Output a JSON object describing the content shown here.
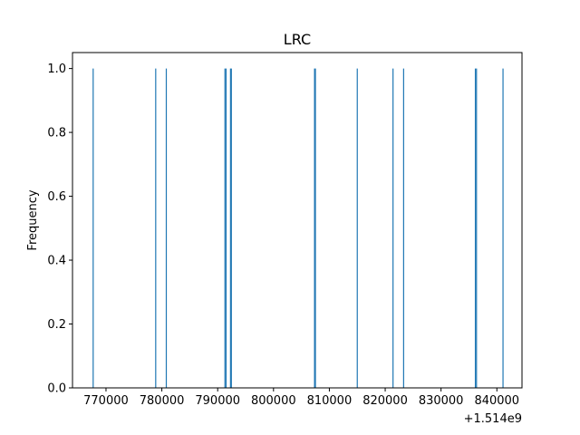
{
  "chart_data": {
    "type": "bar",
    "title": "LRC",
    "xlabel": "",
    "ylabel": "Frequency",
    "x_offset_label": "+1.514e9",
    "xlim": [
      764000,
      844500
    ],
    "ylim": [
      0,
      1.05
    ],
    "xticks": [
      770000,
      780000,
      790000,
      800000,
      810000,
      820000,
      830000,
      840000
    ],
    "xtick_labels": [
      "770000",
      "780000",
      "790000",
      "800000",
      "810000",
      "820000",
      "830000",
      "840000"
    ],
    "yticks": [
      0.0,
      0.2,
      0.4,
      0.6,
      0.8,
      1.0
    ],
    "ytick_labels": [
      "0.0",
      "0.2",
      "0.4",
      "0.6",
      "0.8",
      "1.0"
    ],
    "bar_color": "#1f77b4",
    "grid": false,
    "series": [
      {
        "x": [
          767700,
          778900,
          780800,
          791300,
          791500,
          792300,
          792450,
          807350,
          807500,
          815000,
          821400,
          823300,
          836150,
          836350,
          841100
        ],
        "values": [
          1,
          1,
          1,
          1,
          1,
          1,
          1,
          1,
          1,
          1,
          1,
          1,
          1,
          1,
          1
        ]
      }
    ]
  }
}
